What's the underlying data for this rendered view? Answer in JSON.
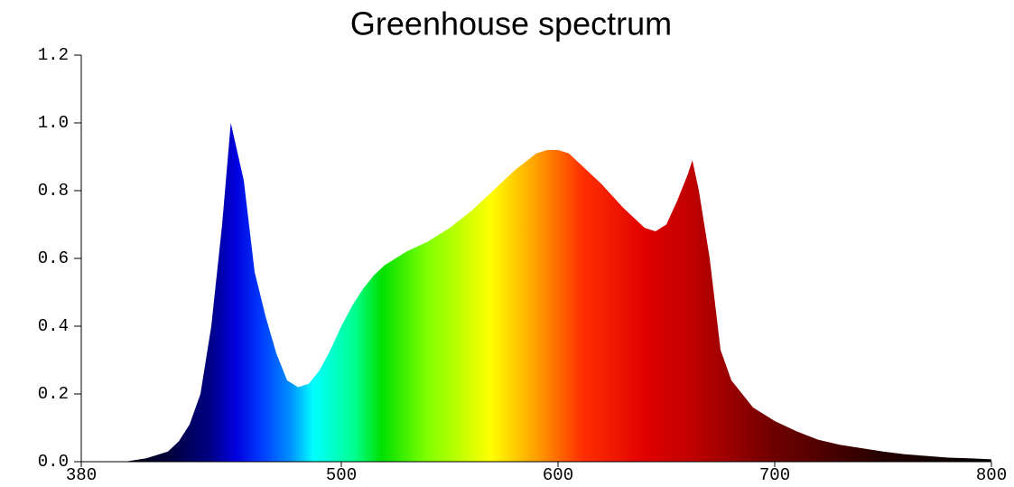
{
  "chart_data": {
    "type": "area",
    "title": "Greenhouse spectrum",
    "x": [
      380,
      400,
      410,
      420,
      425,
      430,
      435,
      440,
      445,
      449,
      455,
      460,
      465,
      470,
      475,
      480,
      485,
      490,
      495,
      500,
      505,
      510,
      515,
      520,
      530,
      540,
      550,
      560,
      570,
      580,
      590,
      595,
      600,
      605,
      610,
      620,
      630,
      640,
      645,
      650,
      655,
      660,
      662,
      665,
      670,
      675,
      680,
      690,
      700,
      710,
      720,
      730,
      740,
      750,
      760,
      770,
      780,
      790,
      800
    ],
    "values": [
      0.0,
      0.0,
      0.01,
      0.03,
      0.06,
      0.11,
      0.2,
      0.4,
      0.7,
      1.0,
      0.83,
      0.56,
      0.43,
      0.32,
      0.24,
      0.22,
      0.23,
      0.27,
      0.33,
      0.4,
      0.46,
      0.51,
      0.55,
      0.58,
      0.62,
      0.65,
      0.69,
      0.74,
      0.8,
      0.86,
      0.91,
      0.92,
      0.92,
      0.91,
      0.88,
      0.82,
      0.75,
      0.69,
      0.68,
      0.7,
      0.77,
      0.85,
      0.89,
      0.8,
      0.6,
      0.33,
      0.24,
      0.16,
      0.12,
      0.09,
      0.065,
      0.05,
      0.04,
      0.03,
      0.022,
      0.017,
      0.012,
      0.01,
      0.007
    ],
    "xlim": [
      380,
      800
    ],
    "xticks": [
      380,
      500,
      600,
      700,
      800
    ],
    "ylim": [
      0,
      1.2
    ],
    "yticks": [
      {
        "value": 0,
        "label": "0.0"
      },
      0.2,
      0.4,
      0.6,
      0.8,
      {
        "value": 1,
        "label": "1.0"
      },
      1.2
    ]
  }
}
